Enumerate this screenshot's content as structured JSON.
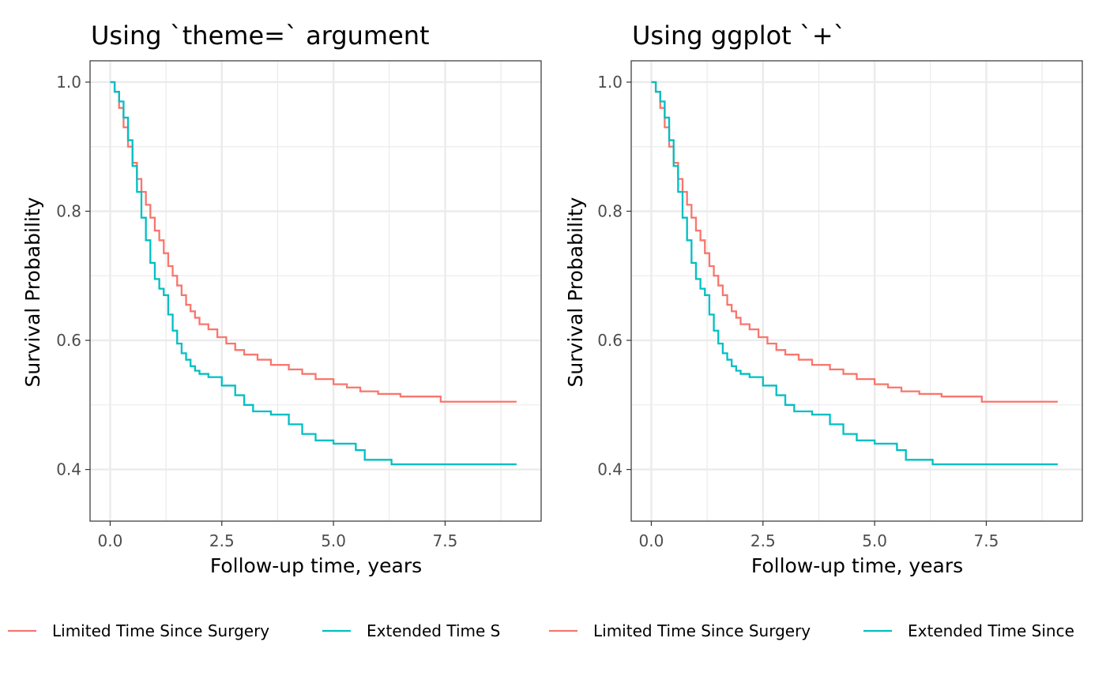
{
  "colors": {
    "limited": "#F8766D",
    "extended": "#00BFC4"
  },
  "legend": {
    "items": [
      {
        "label": "Limited Time Since Surgery",
        "color": "#F8766D"
      },
      {
        "label": "Extended Time Since Surgery",
        "color": "#00BFC4"
      }
    ]
  },
  "chart_data": [
    {
      "type": "line",
      "step": true,
      "title": "Using `theme=` argument",
      "xlabel": "Follow-up time, years",
      "ylabel": "Survival Probability",
      "xlim": [
        -0.45,
        9.65
      ],
      "ylim": [
        0.32,
        1.033
      ],
      "xticks": [
        0.0,
        2.5,
        5.0,
        7.5
      ],
      "xtick_labels": [
        "0.0",
        "2.5",
        "5.0",
        "7.5"
      ],
      "yticks": [
        0.4,
        0.6,
        0.8,
        1.0
      ],
      "ytick_labels": [
        "0.4",
        "0.6",
        "0.8",
        "1.0"
      ],
      "grid": true,
      "legend_position": "bottom",
      "legend_visible_labels": [
        "Limited Time Since Surgery",
        "Extended Time S"
      ],
      "series": [
        {
          "name": "Limited Time Since Surgery",
          "x": [
            0.0,
            0.1,
            0.2,
            0.3,
            0.4,
            0.5,
            0.6,
            0.7,
            0.8,
            0.9,
            1.0,
            1.1,
            1.2,
            1.3,
            1.4,
            1.5,
            1.6,
            1.7,
            1.8,
            1.9,
            2.0,
            2.2,
            2.4,
            2.6,
            2.8,
            3.0,
            3.3,
            3.6,
            4.0,
            4.3,
            4.6,
            5.0,
            5.3,
            5.6,
            6.0,
            6.5,
            7.0,
            7.4,
            8.0,
            9.1
          ],
          "y": [
            1.0,
            0.985,
            0.96,
            0.93,
            0.9,
            0.875,
            0.85,
            0.83,
            0.81,
            0.79,
            0.77,
            0.755,
            0.735,
            0.715,
            0.7,
            0.685,
            0.67,
            0.655,
            0.645,
            0.635,
            0.625,
            0.617,
            0.605,
            0.595,
            0.585,
            0.578,
            0.57,
            0.562,
            0.555,
            0.548,
            0.54,
            0.532,
            0.527,
            0.521,
            0.517,
            0.513,
            0.513,
            0.505,
            0.505,
            0.505
          ]
        },
        {
          "name": "Extended Time Since Surgery",
          "x": [
            0.0,
            0.1,
            0.2,
            0.3,
            0.4,
            0.5,
            0.6,
            0.7,
            0.8,
            0.9,
            1.0,
            1.1,
            1.2,
            1.3,
            1.4,
            1.5,
            1.6,
            1.7,
            1.8,
            1.9,
            2.0,
            2.2,
            2.5,
            2.8,
            3.0,
            3.2,
            3.6,
            4.0,
            4.3,
            4.6,
            5.0,
            5.5,
            5.7,
            6.3,
            7.0,
            9.1
          ],
          "y": [
            1.0,
            0.985,
            0.97,
            0.945,
            0.91,
            0.87,
            0.83,
            0.79,
            0.755,
            0.72,
            0.695,
            0.68,
            0.67,
            0.64,
            0.615,
            0.595,
            0.58,
            0.57,
            0.56,
            0.553,
            0.548,
            0.543,
            0.53,
            0.515,
            0.5,
            0.49,
            0.485,
            0.47,
            0.455,
            0.445,
            0.44,
            0.43,
            0.415,
            0.408,
            0.408,
            0.408
          ]
        }
      ]
    },
    {
      "type": "line",
      "step": true,
      "title": "Using ggplot `+`",
      "xlabel": "Follow-up time, years",
      "ylabel": "Survival Probability",
      "xlim": [
        -0.45,
        9.65
      ],
      "ylim": [
        0.32,
        1.033
      ],
      "xticks": [
        0.0,
        2.5,
        5.0,
        7.5
      ],
      "xtick_labels": [
        "0.0",
        "2.5",
        "5.0",
        "7.5"
      ],
      "yticks": [
        0.4,
        0.6,
        0.8,
        1.0
      ],
      "ytick_labels": [
        "0.4",
        "0.6",
        "0.8",
        "1.0"
      ],
      "grid": true,
      "legend_position": "bottom",
      "legend_visible_labels": [
        "Limited Time Since Surgery",
        "Extended Time Since"
      ],
      "series": [
        {
          "name": "Limited Time Since Surgery",
          "x": [
            0.0,
            0.1,
            0.2,
            0.3,
            0.4,
            0.5,
            0.6,
            0.7,
            0.8,
            0.9,
            1.0,
            1.1,
            1.2,
            1.3,
            1.4,
            1.5,
            1.6,
            1.7,
            1.8,
            1.9,
            2.0,
            2.2,
            2.4,
            2.6,
            2.8,
            3.0,
            3.3,
            3.6,
            4.0,
            4.3,
            4.6,
            5.0,
            5.3,
            5.6,
            6.0,
            6.5,
            7.0,
            7.4,
            8.0,
            9.1
          ],
          "y": [
            1.0,
            0.985,
            0.96,
            0.93,
            0.9,
            0.875,
            0.85,
            0.83,
            0.81,
            0.79,
            0.77,
            0.755,
            0.735,
            0.715,
            0.7,
            0.685,
            0.67,
            0.655,
            0.645,
            0.635,
            0.625,
            0.617,
            0.605,
            0.595,
            0.585,
            0.578,
            0.57,
            0.562,
            0.555,
            0.548,
            0.54,
            0.532,
            0.527,
            0.521,
            0.517,
            0.513,
            0.513,
            0.505,
            0.505,
            0.505
          ]
        },
        {
          "name": "Extended Time Since Surgery",
          "x": [
            0.0,
            0.1,
            0.2,
            0.3,
            0.4,
            0.5,
            0.6,
            0.7,
            0.8,
            0.9,
            1.0,
            1.1,
            1.2,
            1.3,
            1.4,
            1.5,
            1.6,
            1.7,
            1.8,
            1.9,
            2.0,
            2.2,
            2.5,
            2.8,
            3.0,
            3.2,
            3.6,
            4.0,
            4.3,
            4.6,
            5.0,
            5.5,
            5.7,
            6.3,
            7.0,
            9.1
          ],
          "y": [
            1.0,
            0.985,
            0.97,
            0.945,
            0.91,
            0.87,
            0.83,
            0.79,
            0.755,
            0.72,
            0.695,
            0.68,
            0.67,
            0.64,
            0.615,
            0.595,
            0.58,
            0.57,
            0.56,
            0.553,
            0.548,
            0.543,
            0.53,
            0.515,
            0.5,
            0.49,
            0.485,
            0.47,
            0.455,
            0.445,
            0.44,
            0.43,
            0.415,
            0.408,
            0.408,
            0.408
          ]
        }
      ]
    }
  ]
}
